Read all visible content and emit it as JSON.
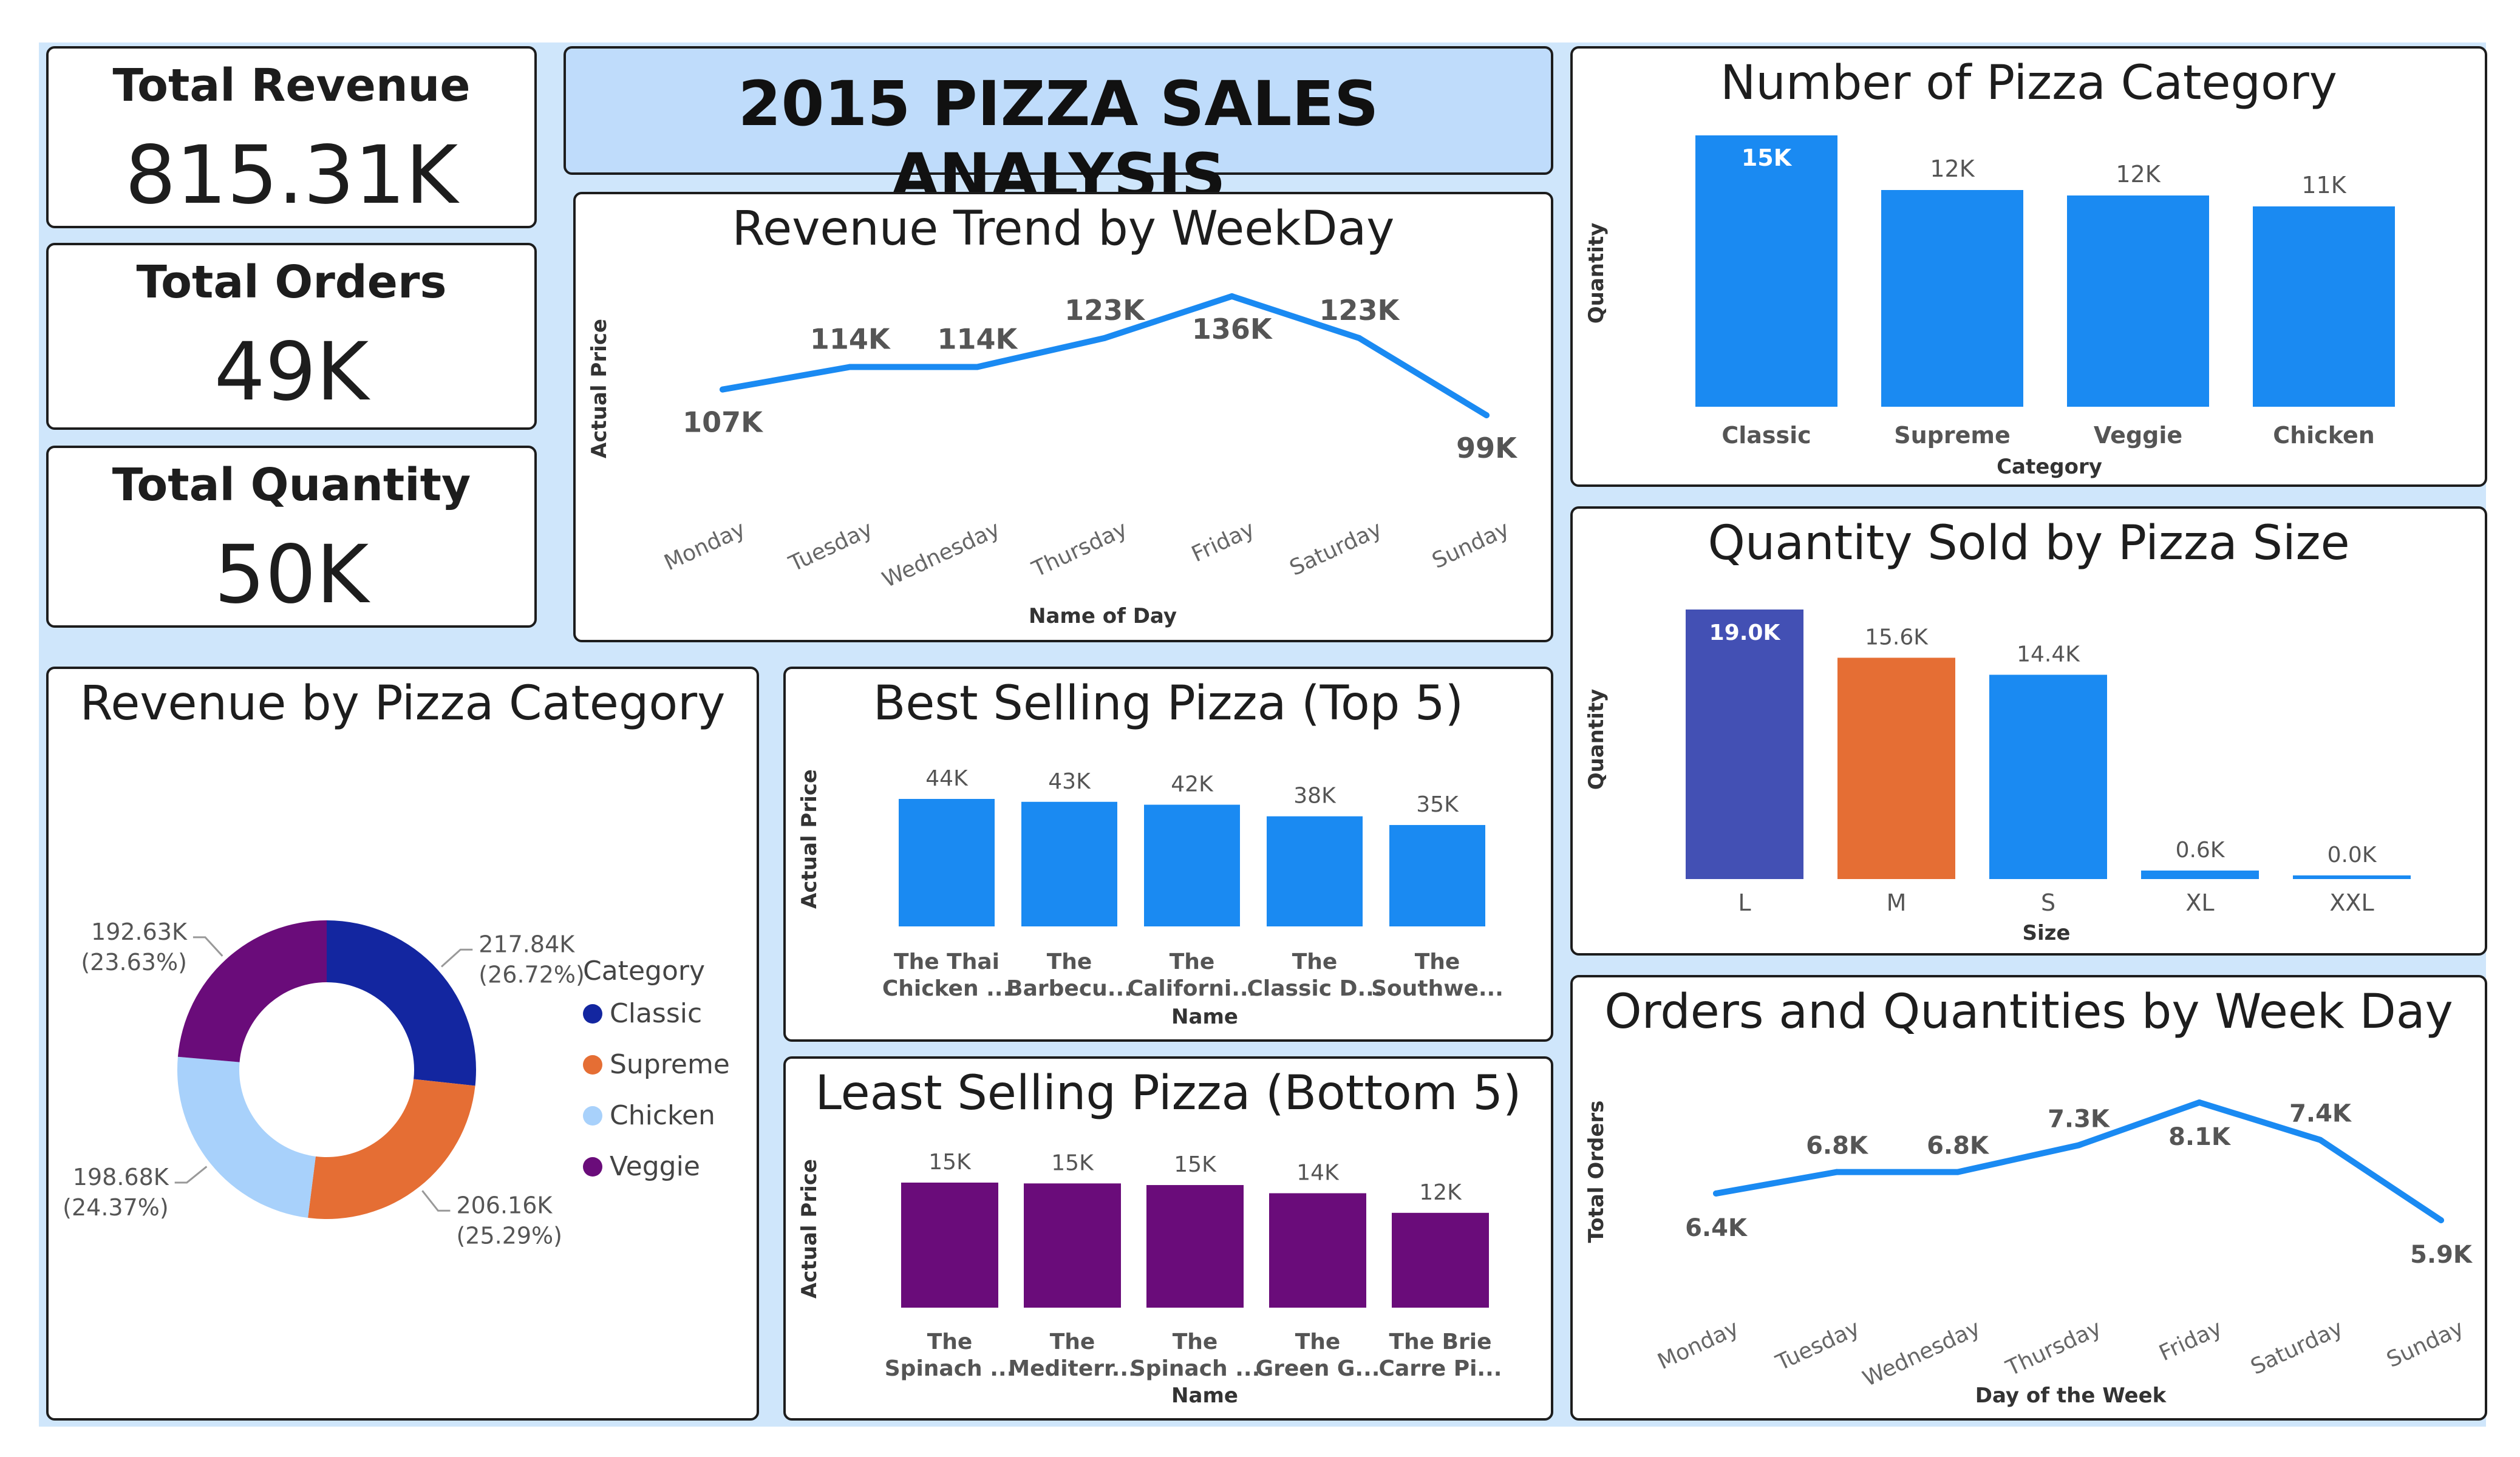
{
  "dashboard": {
    "title": "2015 PIZZA SALES ANALYSIS"
  },
  "kpis": [
    {
      "label": "Total Revenue",
      "value": "815.31K"
    },
    {
      "label": "Total Orders",
      "value": "49K"
    },
    {
      "label": "Total Quantity",
      "value": "50K"
    }
  ],
  "colors": {
    "blue": "#1a8af2",
    "navy": "#1326a0",
    "orange": "#e56e34",
    "lightblue": "#a8d1fb",
    "purple": "#6a0c7a",
    "indigo": "#4350b4",
    "background": "#cfe6fb"
  },
  "chart_data": [
    {
      "id": "revenue-trend",
      "type": "line",
      "title": "Revenue Trend by WeekDay",
      "xlabel": "Name of Day",
      "ylabel": "Actual Price",
      "categories": [
        "Monday",
        "Tuesday",
        "Wednesday",
        "Thursday",
        "Friday",
        "Saturday",
        "Sunday"
      ],
      "values": [
        107000,
        114000,
        114000,
        123000,
        136000,
        123000,
        99000
      ],
      "labels": [
        "107K",
        "114K",
        "114K",
        "123K",
        "136K",
        "123K",
        "99K"
      ],
      "color": "#1a8af2"
    },
    {
      "id": "category-count",
      "type": "bar",
      "title": "Number of Pizza Category",
      "xlabel": "Category",
      "ylabel": "Quantity",
      "categories": [
        "Classic",
        "Supreme",
        "Veggie",
        "Chicken"
      ],
      "values": [
        14900,
        11900,
        11600,
        11000
      ],
      "labels": [
        "15K",
        "12K",
        "12K",
        "11K"
      ],
      "ylim": [
        0,
        15000
      ],
      "color": "#1a8af2"
    },
    {
      "id": "size-quantity",
      "type": "bar",
      "title": "Quantity Sold by Pizza Size",
      "xlabel": "Size",
      "ylabel": "Quantity",
      "categories": [
        "L",
        "M",
        "S",
        "XL",
        "XXL"
      ],
      "values": [
        19000,
        15600,
        14400,
        600,
        30
      ],
      "labels": [
        "19.0K",
        "15.6K",
        "14.4K",
        "0.6K",
        "0.0K"
      ],
      "colors": [
        "#4350b4",
        "#e56e34",
        "#1a8af2",
        "#1a8af2",
        "#1a8af2"
      ],
      "ylim": [
        0,
        19000
      ]
    },
    {
      "id": "category-revenue",
      "type": "pie",
      "title": "Revenue by Pizza Category",
      "legend_title": "Category",
      "slices": [
        {
          "name": "Classic",
          "value": 217.84,
          "label": "217.84K",
          "pct": "(26.72%)",
          "color": "#1326a0"
        },
        {
          "name": "Supreme",
          "value": 206.16,
          "label": "206.16K",
          "pct": "(25.29%)",
          "color": "#e56e34"
        },
        {
          "name": "Chicken",
          "value": 198.68,
          "label": "198.68K",
          "pct": "(24.37%)",
          "color": "#a8d1fb"
        },
        {
          "name": "Veggie",
          "value": 192.63,
          "label": "192.63K",
          "pct": "(23.63%)",
          "color": "#6a0c7a"
        }
      ]
    },
    {
      "id": "best-sellers",
      "type": "bar",
      "title": "Best Selling Pizza (Top 5)",
      "xlabel": "Name",
      "ylabel": "Actual Price",
      "categories": [
        [
          "The Thai",
          "Chicken ..."
        ],
        [
          "The",
          "Barbecu..."
        ],
        [
          "The",
          "Californi..."
        ],
        [
          "The",
          "Classic D..."
        ],
        [
          "The",
          "Southwe..."
        ]
      ],
      "values": [
        44000,
        43000,
        42000,
        38000,
        35000
      ],
      "labels": [
        "44K",
        "43K",
        "42K",
        "38K",
        "35K"
      ],
      "ylim": [
        0,
        44000
      ],
      "color": "#1a8af2"
    },
    {
      "id": "least-sellers",
      "type": "bar",
      "title": "Least Selling Pizza (Bottom 5)",
      "xlabel": "Name",
      "ylabel": "Actual Price",
      "categories": [
        [
          "The",
          "Spinach ..."
        ],
        [
          "The",
          "Mediterr..."
        ],
        [
          "The",
          "Spinach ..."
        ],
        [
          "The",
          "Green G..."
        ],
        [
          "The Brie",
          "Carre Pi..."
        ]
      ],
      "values": [
        15300,
        15200,
        15000,
        14000,
        11600
      ],
      "labels": [
        "15K",
        "15K",
        "15K",
        "14K",
        "12K"
      ],
      "ylim": [
        0,
        15300
      ],
      "color": "#6a0c7a"
    },
    {
      "id": "orders-trend",
      "type": "line",
      "title": "Orders and Quantities by Week Day",
      "xlabel": "Day of the Week",
      "ylabel": "Total Orders",
      "categories": [
        "Monday",
        "Tuesday",
        "Wednesday",
        "Thursday",
        "Friday",
        "Saturday",
        "Sunday"
      ],
      "values": [
        6400,
        6800,
        6800,
        7300,
        8100,
        7400,
        5900
      ],
      "labels": [
        "6.4K",
        "6.8K",
        "6.8K",
        "7.3K",
        "8.1K",
        "7.4K",
        "5.9K"
      ],
      "color": "#1a8af2"
    }
  ]
}
